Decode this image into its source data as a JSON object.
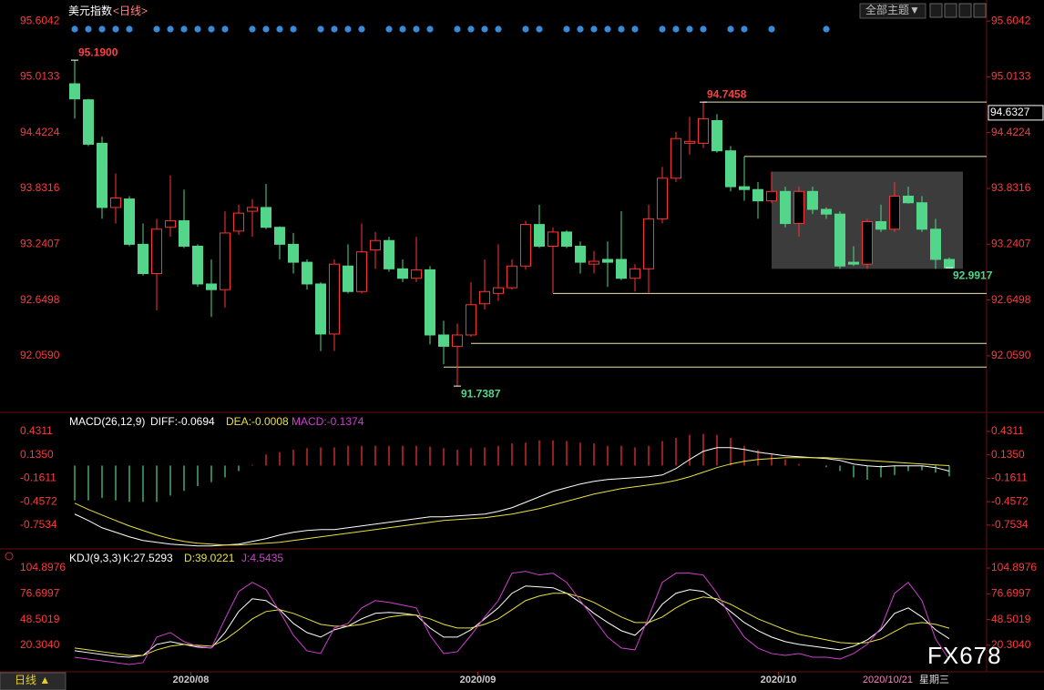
{
  "header": {
    "title": "美元指数",
    "subtitle": "<日线>",
    "theme_button": "全部主题▼",
    "period_tab": "日线 ▲",
    "watermark": "FX678"
  },
  "chart_data": [
    {
      "type": "candlestick",
      "up_color": "#ff3232",
      "down_color": "#54d68a",
      "open": [
        94.94,
        94.77,
        94.31,
        93.63,
        93.72,
        93.24,
        92.93,
        93.42,
        93.49,
        93.22,
        92.82,
        92.76,
        93.38,
        93.59,
        93.63,
        93.42,
        93.24,
        93.05,
        92.82,
        92.29,
        93.01,
        92.74,
        93.18,
        93.28,
        92.98,
        92.88,
        92.97,
        92.28,
        92.16,
        92.28,
        92.61,
        92.72,
        92.78,
        93.01,
        93.45,
        93.22,
        93.37,
        93.22,
        93.03,
        93.08,
        93.08,
        92.88,
        92.98,
        93.51,
        93.94,
        94.31,
        94.31,
        94.55,
        94.23,
        93.85,
        93.82,
        93.7,
        93.8,
        93.46,
        93.8,
        93.61,
        93.56,
        93.05,
        93.03,
        93.48,
        93.4,
        93.75,
        93.68,
        93.4,
        93.08
      ],
      "high": [
        95.19,
        94.78,
        94.38,
        93.99,
        93.75,
        93.46,
        93.51,
        93.97,
        93.82,
        93.24,
        93.08,
        93.59,
        93.66,
        93.72,
        93.88,
        93.43,
        93.36,
        93.08,
        92.84,
        93.08,
        93.24,
        93.46,
        93.37,
        93.32,
        93.08,
        93.32,
        93.01,
        92.43,
        92.4,
        92.84,
        93.08,
        93.24,
        93.08,
        93.49,
        93.66,
        93.42,
        93.39,
        93.27,
        93.17,
        93.27,
        93.59,
        93.03,
        93.66,
        94.06,
        94.43,
        94.59,
        94.7458,
        94.62,
        94.28,
        94.17,
        93.9,
        94.01,
        93.85,
        93.85,
        93.85,
        93.63,
        93.59,
        93.22,
        93.51,
        93.66,
        93.9,
        93.85,
        93.75,
        93.51,
        93.1
      ],
      "low": [
        94.57,
        94.28,
        93.51,
        93.46,
        93.22,
        92.91,
        92.54,
        93.32,
        93.2,
        92.79,
        92.47,
        92.57,
        93.34,
        93.32,
        93.4,
        93.08,
        92.93,
        92.76,
        92.11,
        92.11,
        92.72,
        92.72,
        92.98,
        92.95,
        92.84,
        92.84,
        92.18,
        91.97,
        91.7387,
        92.26,
        92.55,
        92.64,
        92.76,
        92.97,
        93.2,
        92.72,
        93.2,
        92.93,
        92.93,
        92.79,
        92.86,
        92.74,
        92.72,
        93.46,
        93.9,
        94.19,
        94.26,
        94.21,
        93.8,
        93.7,
        93.51,
        93.68,
        93.42,
        93.32,
        93.56,
        93.51,
        92.98,
        93.01,
        92.98,
        93.37,
        93.37,
        93.67,
        93.37,
        92.98,
        92.9917
      ],
      "close": [
        94.78,
        94.3,
        93.63,
        93.73,
        93.24,
        92.93,
        93.4,
        93.49,
        93.22,
        92.82,
        92.76,
        93.36,
        93.57,
        93.63,
        93.42,
        93.24,
        93.05,
        92.82,
        92.29,
        93.03,
        92.74,
        93.16,
        93.28,
        92.98,
        92.88,
        92.97,
        92.28,
        92.16,
        92.28,
        92.6,
        92.74,
        92.78,
        93.01,
        93.45,
        93.22,
        93.37,
        93.22,
        93.05,
        93.06,
        93.05,
        92.88,
        92.98,
        93.51,
        93.94,
        94.36,
        94.33,
        94.57,
        94.23,
        93.85,
        93.82,
        93.7,
        93.8,
        93.46,
        93.8,
        93.61,
        93.56,
        93.01,
        93.03,
        93.48,
        93.4,
        93.75,
        93.68,
        93.4,
        93.08,
        92.99
      ],
      "ylim": [
        91.47,
        95.75
      ],
      "yticks": [
        95.6042,
        95.0133,
        94.4224,
        93.8316,
        93.2407,
        92.6498,
        {
          "value": 92.059,
          "label": "92.0590"
        }
      ],
      "marker_price": 94.6327,
      "annotations": [
        {
          "index": 0,
          "value": 95.19,
          "label": "95.1900",
          "color": "#ff4040"
        },
        {
          "index": 46,
          "value": 94.7458,
          "label": "94.7458",
          "color": "#ff4040"
        },
        {
          "index": 28,
          "value": 91.7387,
          "label": "91.7387",
          "color": "#54d68a"
        },
        {
          "index": 64,
          "value": 92.9917,
          "label": "92.9917",
          "color": "#54d68a"
        }
      ],
      "levels": [
        {
          "from": 46,
          "value": 94.7458
        },
        {
          "from": 49,
          "value": 94.17
        },
        {
          "from": 35,
          "value": 92.72
        },
        {
          "from": 29,
          "value": 92.19
        },
        {
          "from": 27,
          "value": 91.94
        }
      ],
      "level_color": "#e8e4a8",
      "range_box": {
        "from": 51,
        "to": 65,
        "top": 94.01,
        "bottom": 92.98
      }
    },
    {
      "type": "macd",
      "title": "MACD(26,12,9)",
      "ylim": [
        -1.02,
        0.65
      ],
      "yticks": [
        0.4311,
        {
          "value": 0.135,
          "label": "0.1350"
        },
        -0.1611,
        -0.4572,
        -0.7534
      ],
      "histogram": {
        "name": "MACD:-0.1374",
        "color": "#d040d0",
        "up_color": "#ff3232",
        "down_color": "#54d68a",
        "values": [
          -0.44,
          -0.44,
          -0.41,
          -0.44,
          -0.46,
          -0.46,
          -0.46,
          -0.38,
          -0.32,
          -0.26,
          -0.21,
          -0.15,
          -0.07,
          0.01,
          0.14,
          0.17,
          0.2,
          0.22,
          0.23,
          0.23,
          0.25,
          0.25,
          0.25,
          0.25,
          0.25,
          0.25,
          0.24,
          0.22,
          0.2,
          0.22,
          0.23,
          0.25,
          0.28,
          0.29,
          0.32,
          0.32,
          0.31,
          0.29,
          0.28,
          0.25,
          0.25,
          0.23,
          0.25,
          0.31,
          0.35,
          0.39,
          0.4,
          0.39,
          0.35,
          0.25,
          0.2,
          0.14,
          0.08,
          0.02,
          0.0,
          -0.02,
          -0.07,
          -0.15,
          -0.18,
          -0.15,
          -0.12,
          -0.07,
          -0.06,
          -0.09,
          -0.1374
        ]
      },
      "series": [
        {
          "name": "DIFF:-0.0694",
          "color": "#ffffff",
          "values": [
            -0.614,
            -0.695,
            -0.787,
            -0.844,
            -0.902,
            -0.948,
            -0.971,
            -0.994,
            -1.006,
            -1.017,
            -1.017,
            -1.006,
            -0.994,
            -0.96,
            -0.925,
            -0.879,
            -0.844,
            -0.821,
            -0.81,
            -0.81,
            -0.787,
            -0.764,
            -0.741,
            -0.718,
            -0.695,
            -0.672,
            -0.649,
            -0.649,
            -0.637,
            -0.626,
            -0.614,
            -0.579,
            -0.533,
            -0.464,
            -0.395,
            -0.326,
            -0.28,
            -0.234,
            -0.199,
            -0.176,
            -0.165,
            -0.153,
            -0.142,
            -0.119,
            -0.038,
            0.077,
            0.181,
            0.227,
            0.227,
            0.204,
            0.169,
            0.146,
            0.123,
            0.112,
            0.1,
            0.089,
            0.066,
            0.02,
            -0.003,
            -0.015,
            -0.003,
            -0.003,
            -0.003,
            -0.026,
            -0.0694
          ]
        },
        {
          "name": "DEA:-0.0008",
          "color": "#e8e040",
          "values": [
            -0.476,
            -0.556,
            -0.626,
            -0.695,
            -0.764,
            -0.821,
            -0.879,
            -0.925,
            -0.96,
            -0.983,
            -0.994,
            -1.006,
            -1.006,
            -0.994,
            -0.983,
            -0.971,
            -0.948,
            -0.925,
            -0.902,
            -0.879,
            -0.856,
            -0.833,
            -0.81,
            -0.787,
            -0.764,
            -0.741,
            -0.718,
            -0.695,
            -0.683,
            -0.672,
            -0.66,
            -0.637,
            -0.614,
            -0.579,
            -0.545,
            -0.499,
            -0.453,
            -0.407,
            -0.361,
            -0.326,
            -0.291,
            -0.268,
            -0.245,
            -0.222,
            -0.188,
            -0.142,
            -0.084,
            -0.026,
            0.02,
            0.054,
            0.077,
            0.089,
            0.1,
            0.1,
            0.1,
            0.1,
            0.089,
            0.077,
            0.066,
            0.054,
            0.043,
            0.031,
            0.02,
            0.008,
            -0.0008
          ]
        }
      ]
    },
    {
      "type": "line",
      "title": "KDJ(9,3,3)",
      "ylim": [
        -8.7,
        122.9
      ],
      "yticks": [
        104.8976,
        76.6997,
        48.5019,
        {
          "value": 20.304,
          "label": "20.3040"
        }
      ],
      "series": [
        {
          "name": "K:27.5293",
          "color": "#ffffff",
          "values": [
            14.3,
            12.3,
            10.3,
            8.3,
            7.3,
            9.3,
            21.3,
            24.3,
            21.3,
            18.3,
            17.3,
            34.3,
            57.3,
            71.3,
            69.3,
            59.3,
            44.3,
            34.3,
            29.3,
            37.3,
            41.3,
            49.3,
            55.3,
            56.3,
            55.3,
            53.3,
            39.3,
            29.3,
            29.3,
            37.3,
            49.3,
            61.3,
            77.3,
            85.3,
            84.3,
            83.3,
            77.3,
            67.3,
            55.3,
            45.3,
            36.3,
            31.3,
            45.3,
            65.3,
            77.3,
            81.3,
            79.3,
            69.3,
            57.3,
            45.3,
            36.3,
            29.3,
            24.3,
            21.3,
            19.3,
            17.3,
            15.3,
            19.3,
            26.3,
            37.3,
            55.3,
            61.3,
            51.3,
            37.3,
            27.5293
          ]
        },
        {
          "name": "D:39.0221",
          "color": "#e8e040",
          "values": [
            17.3,
            15.3,
            13.3,
            11.3,
            9.3,
            9.3,
            15.3,
            19.3,
            21.3,
            20.3,
            19.3,
            26.3,
            37.3,
            49.3,
            57.3,
            59.3,
            55.3,
            49.3,
            43.3,
            41.3,
            41.3,
            43.3,
            47.3,
            51.3,
            53.3,
            53.3,
            49.3,
            43.3,
            39.3,
            39.3,
            43.3,
            49.3,
            59.3,
            69.3,
            74.3,
            77.3,
            77.3,
            73.3,
            67.3,
            59.3,
            51.3,
            45.3,
            45.3,
            51.3,
            61.3,
            69.3,
            73.3,
            71.3,
            65.3,
            57.3,
            49.3,
            43.3,
            37.3,
            32.3,
            29.3,
            26.3,
            23.3,
            22.3,
            23.3,
            27.3,
            35.3,
            43.3,
            45.3,
            43.3,
            39.0221
          ]
        },
        {
          "name": "J:4.5435",
          "color": "#d040d0",
          "values": [
            7.3,
            5.3,
            3.3,
            1.3,
            -0.7,
            1.3,
            29.3,
            34.3,
            24.3,
            19.3,
            17.3,
            49.3,
            79.3,
            89.3,
            81.3,
            57.3,
            31.3,
            14.3,
            11.3,
            39.3,
            44.3,
            61.3,
            69.3,
            67.3,
            64.3,
            61.3,
            31.3,
            11.3,
            13.3,
            31.3,
            51.3,
            69.3,
            99.3,
            101.3,
            97.3,
            99.3,
            89.3,
            69.3,
            49.3,
            29.3,
            17.3,
            15.3,
            51.3,
            89.3,
            99.3,
            99.3,
            97.3,
            77.3,
            51.3,
            29.3,
            17.3,
            11.3,
            9.3,
            11.3,
            7.3,
            7.3,
            5.3,
            11.3,
            21.3,
            39.3,
            77.3,
            89.3,
            69.3,
            27.3,
            4.5435
          ]
        }
      ],
      "xticks": [
        {
          "value": 8.5,
          "label": "2020/08"
        },
        {
          "value": 29.5,
          "label": "2020/09"
        },
        {
          "value": 51.5,
          "label": "2020/10"
        }
      ],
      "cursor": {
        "index": 64,
        "date": "2020/10/21",
        "weekday": "星期三"
      }
    }
  ]
}
